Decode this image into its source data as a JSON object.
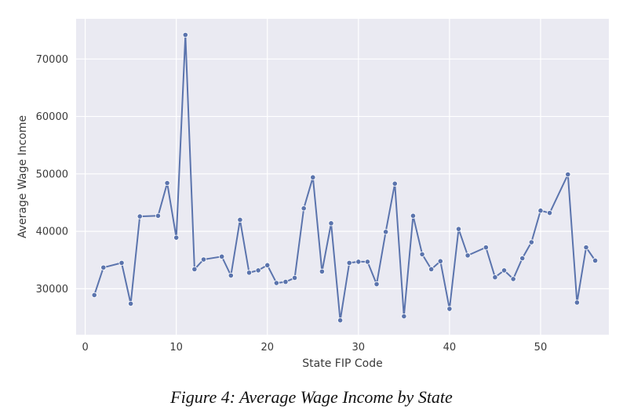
{
  "chart_data": {
    "type": "line",
    "title": "",
    "xlabel": "State FIP Code",
    "ylabel": "Average Wage Income",
    "xlim": [
      -1,
      57.5
    ],
    "ylim": [
      22000,
      77000
    ],
    "xticks": [
      0,
      10,
      20,
      30,
      40,
      50
    ],
    "yticks": [
      30000,
      40000,
      50000,
      60000,
      70000
    ],
    "xtick_labels": [
      "0",
      "10",
      "20",
      "30",
      "40",
      "50"
    ],
    "ytick_labels": [
      "30000",
      "40000",
      "50000",
      "60000",
      "70000"
    ],
    "grid": true,
    "marker": "circle",
    "line_color": "#5b74ad",
    "background_color": "#eaeaf2",
    "grid_color": "#ffffff",
    "series": [
      {
        "x": [
          1,
          2,
          4,
          5,
          6,
          8,
          9,
          10,
          11,
          12,
          13,
          15,
          16,
          17,
          18,
          19,
          20,
          21,
          22,
          23,
          24,
          25,
          26,
          27,
          28,
          29,
          30,
          31,
          32,
          33,
          34,
          35,
          36,
          37,
          38,
          39,
          40,
          41,
          42,
          44,
          45,
          46,
          47,
          48,
          49,
          50,
          51,
          53,
          54,
          55,
          56
        ],
        "values": [
          28900,
          33700,
          34500,
          27400,
          42600,
          42700,
          48400,
          38900,
          74200,
          33400,
          35100,
          35600,
          32300,
          42000,
          32800,
          33200,
          34100,
          31000,
          31200,
          31900,
          44000,
          49400,
          33000,
          41400,
          24500,
          34500,
          34700,
          34700,
          30800,
          39900,
          48300,
          25200,
          42700,
          36000,
          33400,
          34800,
          26500,
          40400,
          35800,
          37200,
          32000,
          33200,
          31700,
          35300,
          38100,
          43600,
          43200,
          49900,
          27600,
          37200,
          34900
        ]
      }
    ]
  },
  "caption": "Figure 4: Average Wage Income by State"
}
